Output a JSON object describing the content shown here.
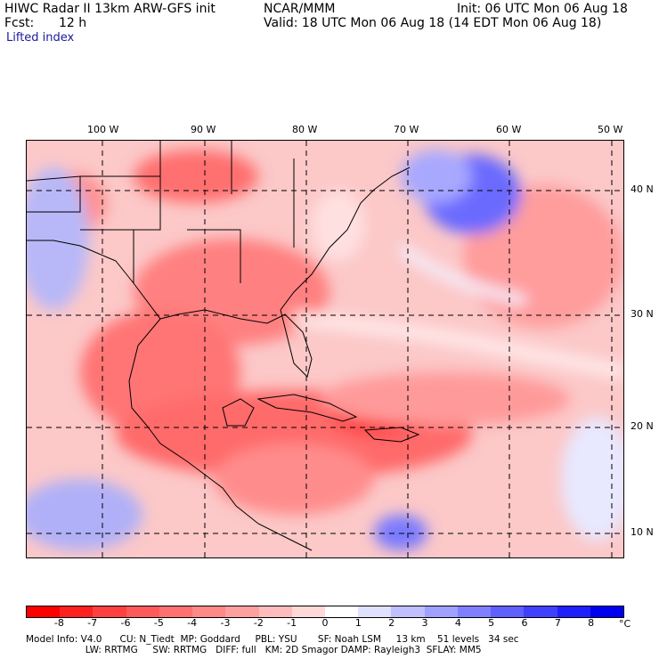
{
  "header": {
    "title_line1": "HIWC Radar II 13km ARW-GFS init",
    "org": "NCAR/MMM",
    "init": "Init: 06 UTC Mon 06 Aug 18",
    "fcst_label": "Fcst:",
    "fcst_value": "12 h",
    "valid": "Valid: 18 UTC Mon 06 Aug 18 (14 EDT Mon 06 Aug 18)",
    "field": "Lifted index"
  },
  "map": {
    "lon_labels": [
      "100 W",
      "90 W",
      "80 W",
      "70 W",
      "60 W",
      "50 W"
    ],
    "lat_labels": [
      "40 N",
      "30 N",
      "20 N",
      "10 N"
    ]
  },
  "colorbar": {
    "ticks": [
      "-8",
      "-7",
      "-6",
      "-5",
      "-4",
      "-3",
      "-2",
      "-1",
      "0",
      "1",
      "2",
      "3",
      "4",
      "5",
      "6",
      "7",
      "8"
    ],
    "unit": "°C",
    "colors": [
      "#ff0000",
      "#ff2020",
      "#ff4040",
      "#ff5a5a",
      "#ff7070",
      "#ff8888",
      "#ffa0a0",
      "#ffbcbc",
      "#ffd8d8",
      "#ffffff",
      "#e0e0ff",
      "#c0c0ff",
      "#a0a0ff",
      "#8080ff",
      "#6060ff",
      "#4040ff",
      "#2020ff",
      "#0000f0"
    ]
  },
  "footer": {
    "line1": "Model Info: V4.0      CU: N_Tiedt  MP: Goddard     PBL: YSU       SF: Noah LSM     13 km    51 levels   34 sec",
    "line2": "                    LW: RRTMG     SW: RRTMG   DIFF: full   KM: 2D Smagor DAMP: Rayleigh3  SFLAY: MM5"
  }
}
